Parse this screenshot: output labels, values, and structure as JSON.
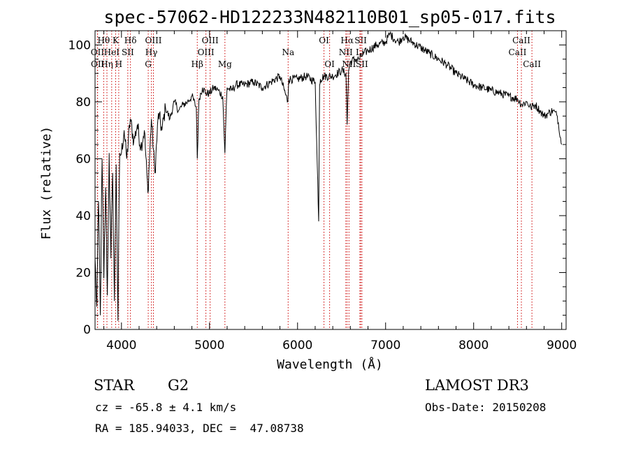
{
  "chart_data": {
    "type": "line",
    "title": "spec-57062-HD122233N482110B01_sp05-017.fits",
    "xlabel": "Wavelength (Å)",
    "ylabel": "Flux (relative)",
    "xlim": [
      3700,
      9050
    ],
    "ylim": [
      0,
      105
    ],
    "xticks": [
      4000,
      5000,
      6000,
      7000,
      8000,
      9000
    ],
    "yticks": [
      0,
      20,
      40,
      60,
      80,
      100
    ],
    "series": [
      {
        "name": "spectrum",
        "x": [
          3700,
          3720,
          3740,
          3760,
          3780,
          3800,
          3820,
          3840,
          3860,
          3880,
          3900,
          3920,
          3940,
          3960,
          3980,
          4000,
          4030,
          4060,
          4100,
          4140,
          4180,
          4220,
          4260,
          4300,
          4340,
          4380,
          4420,
          4460,
          4500,
          4550,
          4600,
          4650,
          4700,
          4750,
          4800,
          4850,
          4861,
          4880,
          4920,
          4960,
          5000,
          5050,
          5100,
          5150,
          5175,
          5190,
          5200,
          5250,
          5300,
          5400,
          5500,
          5600,
          5700,
          5800,
          5890,
          5900,
          6000,
          6100,
          6200,
          6240,
          6250,
          6260,
          6300,
          6400,
          6500,
          6550,
          6563,
          6580,
          6600,
          6650,
          6700,
          6750,
          6800,
          6900,
          7000,
          7050,
          7100,
          7150,
          7200,
          7300,
          7400,
          7500,
          7600,
          7700,
          7800,
          7900,
          8000,
          8100,
          8200,
          8300,
          8400,
          8500,
          8550,
          8600,
          8650,
          8700,
          8750,
          8800,
          8850,
          8900,
          8950,
          9000
        ],
        "values": [
          25,
          8,
          45,
          5,
          60,
          18,
          50,
          12,
          62,
          25,
          55,
          10,
          58,
          3,
          62,
          62,
          70,
          60,
          74,
          66,
          72,
          64,
          70,
          48,
          74,
          55,
          76,
          70,
          78,
          74,
          80,
          77,
          79,
          80,
          82,
          78,
          60,
          81,
          85,
          83,
          83,
          85,
          84,
          82,
          62,
          78,
          85,
          84,
          86,
          86,
          87,
          85,
          87,
          89,
          80,
          88,
          88,
          89,
          87,
          38,
          86,
          88,
          89,
          89,
          91,
          90,
          72,
          91,
          94,
          95,
          95,
          97,
          98,
          100,
          101,
          104,
          102,
          101,
          103,
          101,
          99,
          97,
          95,
          93,
          90,
          88,
          86,
          85,
          84,
          83,
          82,
          81,
          79,
          80,
          78,
          79,
          77,
          75,
          76,
          77,
          75,
          65
        ]
      }
    ],
    "line_marks": [
      {
        "label": "Hθ",
        "wavelength": 3798,
        "row": 1
      },
      {
        "label": "OII",
        "wavelength": 3727,
        "row": 2
      },
      {
        "label": "OII",
        "wavelength": 3729,
        "row": 3
      },
      {
        "label": "Hη",
        "wavelength": 3835,
        "row": 3
      },
      {
        "label": "HeI",
        "wavelength": 3889,
        "row": 2
      },
      {
        "label": "K",
        "wavelength": 3934,
        "row": 1
      },
      {
        "label": "H",
        "wavelength": 3969,
        "row": 3
      },
      {
        "label": "Hδ",
        "wavelength": 4102,
        "row": 1
      },
      {
        "label": "SII",
        "wavelength": 4072,
        "row": 2
      },
      {
        "label": "OIII",
        "wavelength": 4363,
        "row": 1
      },
      {
        "label": "Hγ",
        "wavelength": 4340,
        "row": 2
      },
      {
        "label": "G",
        "wavelength": 4304,
        "row": 3
      },
      {
        "label": "Hβ",
        "wavelength": 4861,
        "row": 3
      },
      {
        "label": "OIII",
        "wavelength": 4959,
        "row": 2
      },
      {
        "label": "OIII",
        "wavelength": 5007,
        "row": 1
      },
      {
        "label": "Mg",
        "wavelength": 5175,
        "row": 3
      },
      {
        "label": "Na",
        "wavelength": 5893,
        "row": 2
      },
      {
        "label": "OI",
        "wavelength": 6300,
        "row": 1
      },
      {
        "label": "OI",
        "wavelength": 6364,
        "row": 3
      },
      {
        "label": "Hα",
        "wavelength": 6563,
        "row": 1
      },
      {
        "label": "NII",
        "wavelength": 6548,
        "row": 2
      },
      {
        "label": "NII",
        "wavelength": 6584,
        "row": 3
      },
      {
        "label": "SII",
        "wavelength": 6717,
        "row": 1
      },
      {
        "label": "Li",
        "wavelength": 6708,
        "row": 2
      },
      {
        "label": "SII",
        "wavelength": 6731,
        "row": 3
      },
      {
        "label": "CaII",
        "wavelength": 8498,
        "row": 2
      },
      {
        "label": "CaII",
        "wavelength": 8542,
        "row": 1
      },
      {
        "label": "CaII",
        "wavelength": 8662,
        "row": 3
      }
    ]
  },
  "info": {
    "object_class": "STAR",
    "subclass": "G2",
    "survey": "LAMOST DR3",
    "redshift_line": "cz = -65.8 ± 4.1 km/s",
    "obs_date_line": "Obs-Date: 20150208",
    "coords_line": "RA = 185.94033, DEC =  47.08738"
  },
  "colors": {
    "line_mark": "#cc0000",
    "spectrum": "#000000",
    "axes": "#000000"
  }
}
